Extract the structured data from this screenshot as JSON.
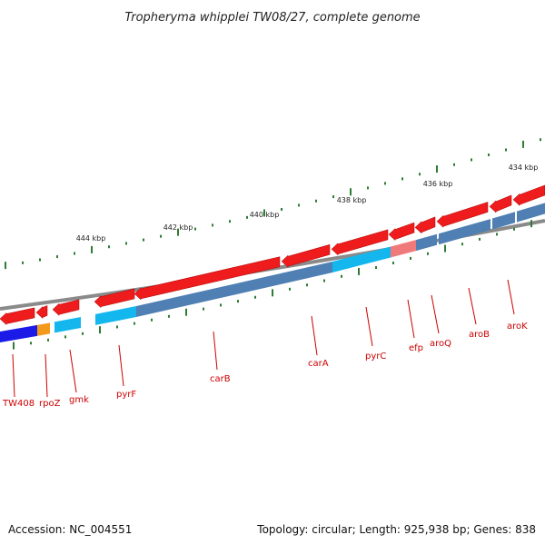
{
  "title": "Tropheryma whipplei TW08/27, complete genome",
  "accession": "Accession: NC_004551",
  "summary": "Topology: circular; Length: 925,938 bp; Genes: 838",
  "colors": {
    "backbone": "#888888",
    "cds_arrow": "#ee1c1c",
    "cds_arrow_light": "#f07a7a",
    "cog_blue": "#1b1be8",
    "cog_orange": "#f39a1a",
    "cog_cyan": "#13b7ee",
    "cog_steel": "#4f7fb3",
    "tick": "#2e7d32",
    "label": "#cc0000"
  },
  "kbp_labels": [
    "444 kbp",
    "442 kbp",
    "440 kbp",
    "438 kbp",
    "436 kbp",
    "434 kbp"
  ],
  "genes": [
    "TW408",
    "rpoZ",
    "gmk",
    "pyrF",
    "carB",
    "carA",
    "pyrC",
    "efp",
    "aroQ",
    "aroB",
    "aroK"
  ]
}
